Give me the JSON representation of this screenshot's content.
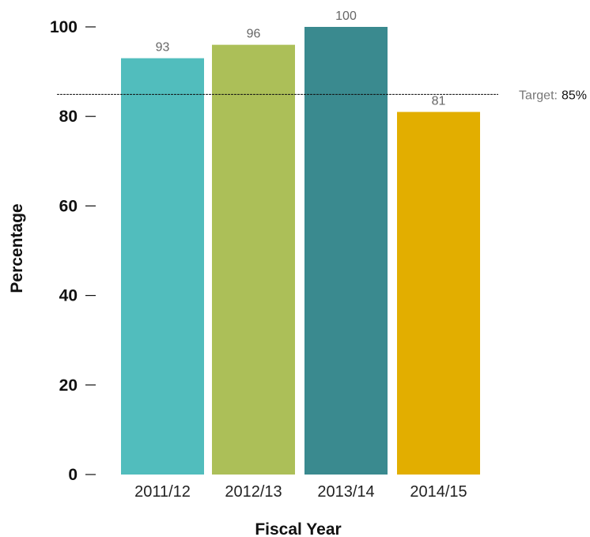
{
  "chart_data": {
    "type": "bar",
    "categories": [
      "2011/12",
      "2012/13",
      "2013/14",
      "2014/15"
    ],
    "values": [
      93,
      96,
      100,
      81
    ],
    "value_labels": [
      "93",
      "96",
      "100",
      "81"
    ],
    "colors": [
      "#51bdbd",
      "#acbf58",
      "#3a8a8f",
      "#e2ae00"
    ],
    "xlabel": "Fiscal Year",
    "ylabel": "Percentage",
    "ylim": [
      0,
      100
    ],
    "yticks": [
      0,
      20,
      40,
      60,
      80,
      100
    ],
    "ytick_labels": [
      "0",
      "20",
      "40",
      "60",
      "80",
      "100"
    ],
    "grid": false,
    "target": {
      "value": 85,
      "label": "Target:",
      "value_label": "85%",
      "line_style": "dashed"
    }
  }
}
